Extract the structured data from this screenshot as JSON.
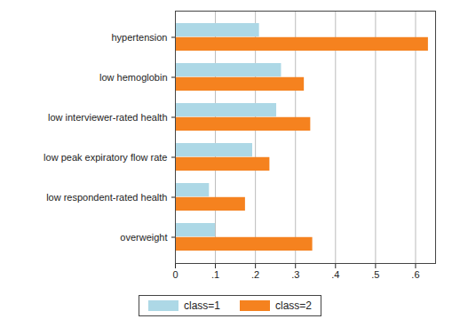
{
  "chart_data": {
    "type": "bar",
    "orientation": "horizontal",
    "categories": [
      "hypertension",
      "low hemoglobin",
      "low interviewer-rated health",
      "low peak expiratory flow rate",
      "low respondent-rated health",
      "overweight"
    ],
    "series": [
      {
        "name": "class=1",
        "color": "#add8e6",
        "values": [
          0.21,
          0.265,
          0.253,
          0.193,
          0.085,
          0.1
        ]
      },
      {
        "name": "class=2",
        "color": "#f5821f",
        "values": [
          0.632,
          0.322,
          0.338,
          0.236,
          0.175,
          0.343
        ]
      }
    ],
    "xlim": [
      0,
      0.65
    ],
    "xticks": [
      0,
      {
        "value": 0.1,
        "label": ".1"
      },
      {
        "value": 0.2,
        "label": ".2"
      },
      {
        "value": 0.3,
        "label": ".3"
      },
      {
        "value": 0.4,
        "label": ".4"
      },
      {
        "value": 0.5,
        "label": ".5"
      },
      {
        "value": 0.6,
        "label": ".6"
      }
    ],
    "grid": true,
    "legend": "bottom"
  }
}
